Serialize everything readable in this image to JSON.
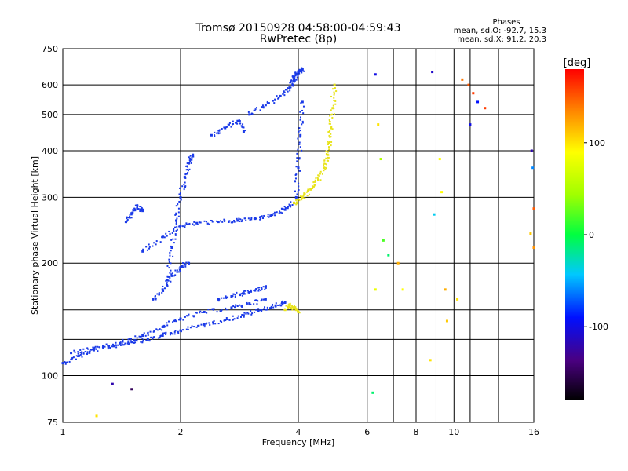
{
  "chart_data": {
    "type": "scatter",
    "title": "Tromsø 20150928 04:58:00-04:59:43",
    "subtitle": "RwPretec (8p)",
    "xlabel": "Frequency [MHz]",
    "ylabel": "Stationary phase Virtual Height [km]",
    "x_scale": "log",
    "y_scale": "log",
    "xlim": [
      1,
      16
    ],
    "ylim": [
      75,
      750
    ],
    "x_ticks": [
      1,
      2,
      4,
      6,
      8,
      10,
      16
    ],
    "x_tick_labels": [
      "1",
      "2",
      "4",
      "6",
      "8",
      "10",
      "16"
    ],
    "y_ticks": [
      75,
      100,
      200,
      300,
      400,
      500,
      600,
      750
    ],
    "y_tick_labels": [
      "75",
      "100",
      "200",
      "300",
      "400",
      "500",
      "600",
      "750"
    ],
    "x_minor_gridlines": [
      7,
      9,
      11,
      13
    ],
    "y_minor_gridlines": [
      125,
      150
    ],
    "grid": true,
    "legend": {
      "title": "Phases",
      "lines": [
        "mean, sd,O: -92.7, 15.3",
        "mean, sd,X:  91.2, 20.3"
      ],
      "placement": "top-right"
    },
    "colorbar": {
      "label": "[deg]",
      "range": [
        -180,
        180
      ],
      "ticks": [
        -100,
        0,
        100
      ],
      "tick_labels": [
        "-100",
        "0",
        "100"
      ]
    },
    "colors": {
      "o_mode": "#1a3ae8",
      "x_mode": "#e8e31a",
      "grid": "#000000"
    },
    "series": [
      {
        "name": "",
        "mode": "O",
        "phase": -92.7,
        "traces": [
          {
            "x": [
              1.0,
              1.1,
              1.2,
              1.35,
              1.5,
              1.65,
              1.8,
              2.0,
              2.3,
              2.6,
              2.9,
              3.2,
              3.5,
              3.7
            ],
            "y": [
              108,
              113,
              117,
              120,
              123,
              125,
              128,
              132,
              137,
              141,
              145,
              150,
              154,
              157
            ]
          },
          {
            "x": [
              1.05,
              1.2,
              1.4,
              1.6,
              1.8,
              2.0,
              2.3,
              2.7,
              3.0,
              3.3
            ],
            "y": [
              115,
              118,
              122,
              128,
              135,
              142,
              148,
              152,
              156,
              160
            ]
          },
          {
            "x": [
              1.6,
              1.8,
              2.0,
              2.2,
              2.5,
              2.8,
              3.1,
              3.4,
              3.7,
              3.9
            ],
            "y": [
              215,
              235,
              252,
              256,
              258,
              260,
              263,
              268,
              278,
              290
            ]
          },
          {
            "x": [
              1.85,
              1.9,
              1.95,
              2.0,
              2.05,
              2.1,
              2.15
            ],
            "y": [
              180,
              220,
              260,
              300,
              340,
              370,
              390
            ]
          },
          {
            "x": [
              1.45,
              1.5,
              1.55,
              1.6
            ],
            "y": [
              258,
              272,
              285,
              276
            ]
          },
          {
            "x": [
              3.0,
              3.3,
              3.6,
              3.8,
              3.9,
              3.95,
              4.0,
              4.1
            ],
            "y": [
              500,
              530,
              560,
              590,
              620,
              640,
              650,
              660
            ]
          },
          {
            "x": [
              3.95,
              4.0,
              4.05,
              4.1
            ],
            "y": [
              300,
              360,
              440,
              540
            ]
          },
          {
            "x": [
              2.4,
              2.6,
              2.8,
              2.9
            ],
            "y": [
              440,
              460,
              480,
              450
            ]
          },
          {
            "x": [
              1.7,
              1.8,
              1.9,
              2.0,
              2.1
            ],
            "y": [
              160,
              170,
              185,
              195,
              200
            ]
          },
          {
            "x": [
              2.5,
              2.7,
              2.9,
              3.1,
              3.3
            ],
            "y": [
              160,
              163,
              166,
              169,
              172
            ]
          }
        ]
      },
      {
        "name": "",
        "mode": "X",
        "phase": 91.2,
        "traces": [
          {
            "x": [
              3.9,
              4.1,
              4.3,
              4.5,
              4.65,
              4.75,
              4.8,
              4.85,
              4.9,
              4.95
            ],
            "y": [
              290,
              300,
              315,
              335,
              360,
              390,
              420,
              460,
              520,
              600
            ]
          },
          {
            "x": [
              3.7,
              3.8,
              3.9,
              4.0
            ],
            "y": [
              150,
              155,
              152,
              148
            ]
          }
        ]
      }
    ],
    "scattered_points": {
      "x": [
        6.3,
        6.4,
        6.5,
        6.6,
        6.8,
        7.2,
        7.4,
        8.8,
        8.9,
        9.2,
        9.5,
        9.6,
        10.2,
        10.5,
        10.9,
        11.2,
        11.5,
        12.0,
        15.8,
        15.9,
        16.0,
        15.7,
        16.0,
        11.0,
        9.3,
        8.7,
        6.2,
        6.3,
        1.22,
        1.34,
        1.5
      ],
      "y": [
        640,
        470,
        380,
        230,
        210,
        200,
        170,
        650,
        270,
        380,
        170,
        140,
        160,
        620,
        600,
        570,
        540,
        520,
        400,
        360,
        280,
        240,
        220,
        470,
        310,
        110,
        90,
        170,
        78,
        95,
        92
      ],
      "phase": [
        -100,
        100,
        50,
        20,
        -10,
        120,
        90,
        -110,
        -40,
        90,
        120,
        110,
        100,
        140,
        150,
        160,
        -90,
        160,
        -120,
        -60,
        150,
        110,
        130,
        -100,
        90,
        100,
        -10,
        80,
        100,
        -120,
        -150
      ]
    }
  }
}
